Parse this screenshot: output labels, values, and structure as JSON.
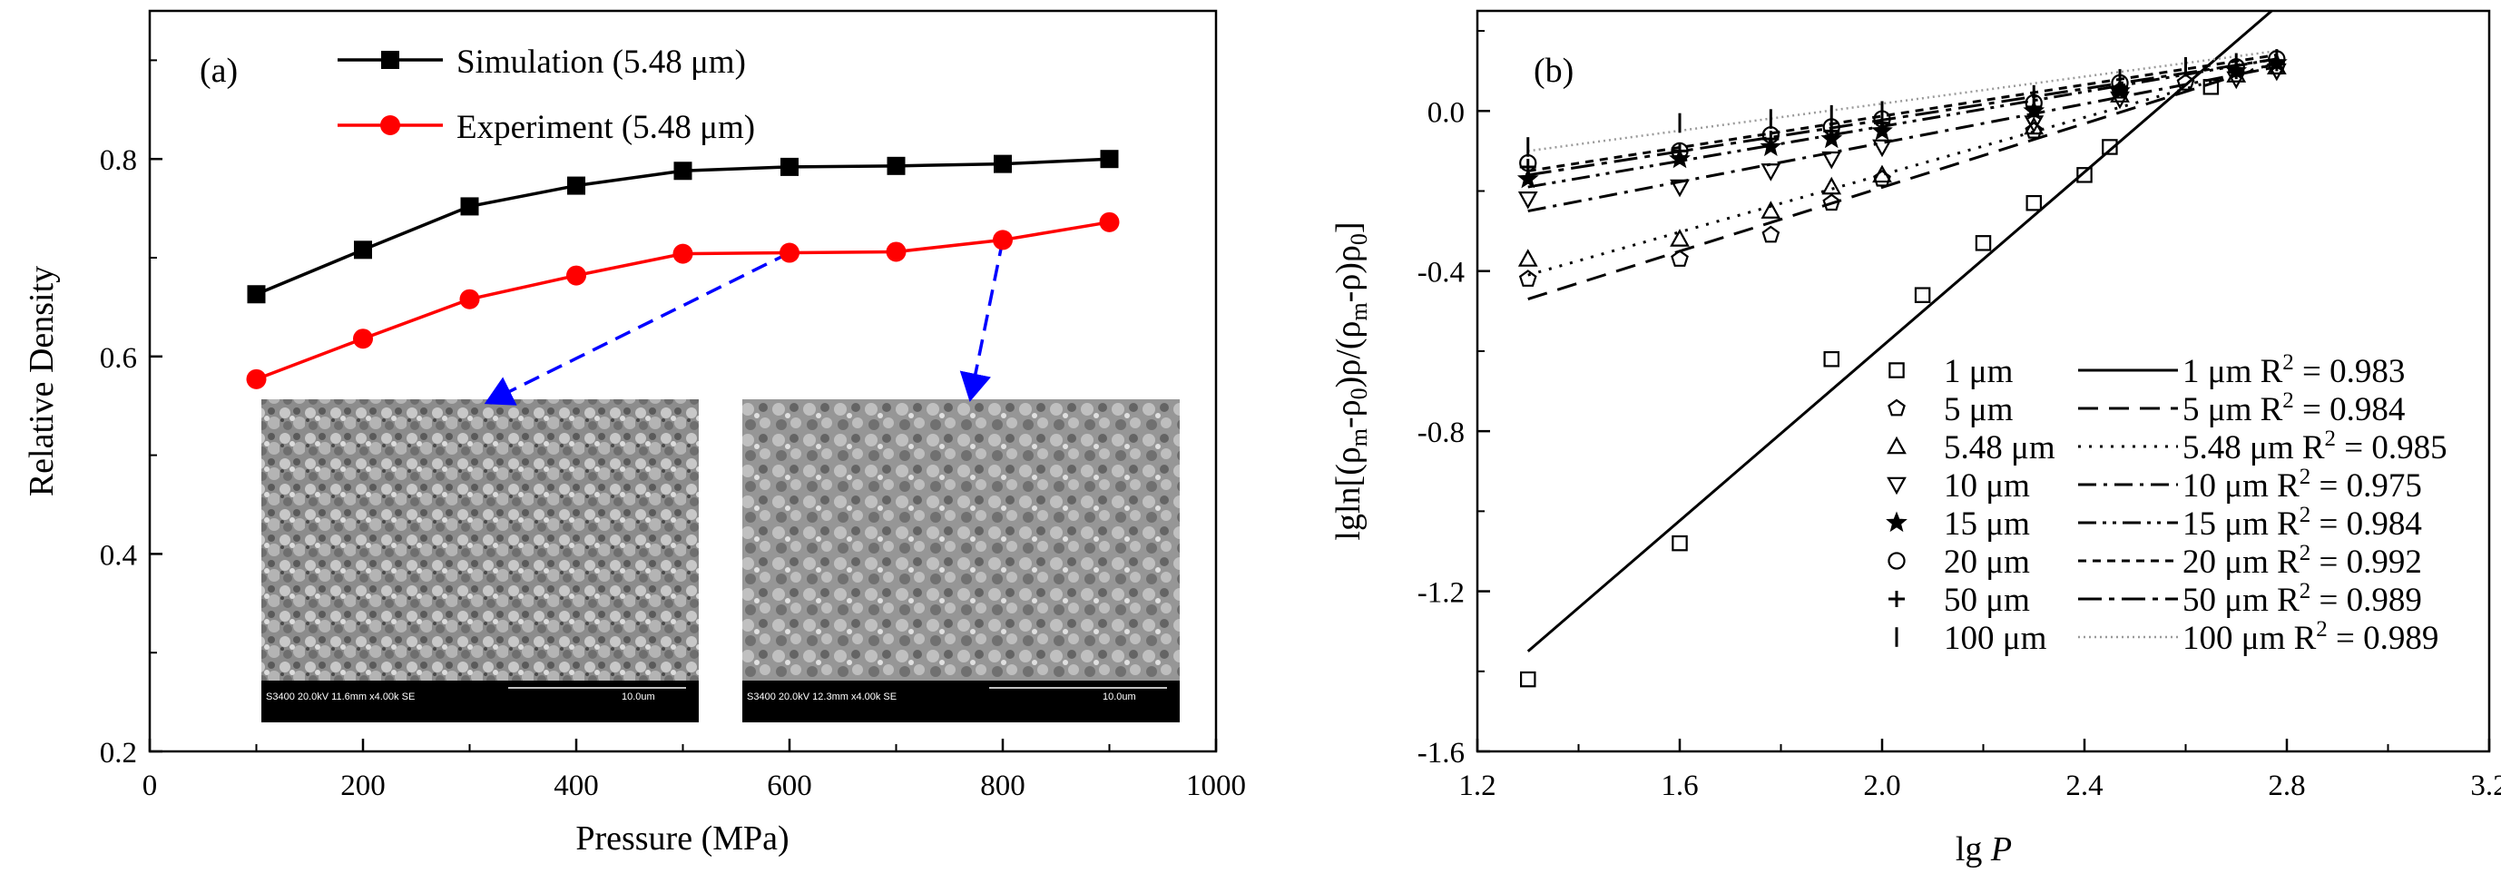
{
  "chart_data": [
    {
      "type": "line",
      "panel_label": "(a)",
      "xlabel": "Pressure (MPa)",
      "ylabel": "Relative Density",
      "xlim": [
        0,
        1000
      ],
      "ylim": [
        0.2,
        0.95
      ],
      "xticks": [
        0,
        200,
        400,
        600,
        800,
        1000
      ],
      "yticks": [
        0.2,
        0.4,
        0.6,
        0.8
      ],
      "ytick_labels": [
        "0.2",
        "0.4",
        "0.6",
        "0.8"
      ],
      "grid": false,
      "legend_position": "top-center",
      "series": [
        {
          "name": "Simulation (5.48 μm)",
          "color": "#000000",
          "marker": "square",
          "x": [
            100,
            200,
            300,
            400,
            500,
            600,
            700,
            800,
            900
          ],
          "y": [
            0.663,
            0.708,
            0.752,
            0.773,
            0.788,
            0.792,
            0.793,
            0.795,
            0.8
          ]
        },
        {
          "name": "Experiment (5.48 μm)",
          "color": "#ff0000",
          "marker": "circle",
          "x": [
            100,
            200,
            300,
            400,
            500,
            600,
            700,
            800,
            900
          ],
          "y": [
            0.577,
            0.618,
            0.658,
            0.682,
            0.704,
            0.705,
            0.706,
            0.718,
            0.736
          ]
        }
      ],
      "annotations": [
        {
          "type": "dashed-arrow",
          "color": "#0000ff",
          "from": [
            600,
            0.705
          ],
          "to_inset": "left"
        },
        {
          "type": "dashed-arrow",
          "color": "#0000ff",
          "from": [
            800,
            0.718
          ],
          "to_inset": "right"
        }
      ],
      "insets": [
        {
          "kind": "sem-micrograph",
          "caption": "S3400 20.0kV 11.6mm x4.00k SE",
          "scale_label": "10.0um"
        },
        {
          "kind": "sem-micrograph",
          "caption": "S3400 20.0kV 12.3mm x4.00k SE",
          "scale_label": "10.0um"
        }
      ]
    },
    {
      "type": "scatter",
      "panel_label": "(b)",
      "xlabel": "lg P",
      "ylabel": "lgln[(ρm-ρ0)ρ/(ρm-ρ)ρ0]",
      "xlim": [
        1.2,
        3.2
      ],
      "ylim": [
        -1.6,
        0.25
      ],
      "xticks": [
        1.2,
        1.6,
        2.0,
        2.4,
        2.8,
        3.2
      ],
      "xtick_labels": [
        "1.2",
        "1.6",
        "2.0",
        "2.4",
        "2.8",
        "3.2"
      ],
      "yticks": [
        -1.6,
        -1.2,
        -0.8,
        -0.4,
        0.0
      ],
      "ytick_labels": [
        "-1.6",
        "-1.2",
        "-0.8",
        "-0.4",
        "0.0"
      ],
      "grid": false,
      "legend_position": "bottom-right",
      "series": [
        {
          "name": "1 μm",
          "marker": "square",
          "x": [
            1.3,
            1.6,
            1.9,
            2.08,
            2.2,
            2.3,
            2.4,
            2.45,
            2.65
          ],
          "y": [
            -1.42,
            -1.08,
            -0.62,
            -0.46,
            -0.33,
            -0.23,
            -0.16,
            -0.09,
            0.06
          ]
        },
        {
          "name": "5 μm",
          "marker": "pentagon",
          "x": [
            1.3,
            1.6,
            1.78,
            1.9,
            2.0,
            2.3,
            2.47,
            2.6,
            2.78
          ],
          "y": [
            -0.42,
            -0.37,
            -0.31,
            -0.23,
            -0.17,
            -0.05,
            0.05,
            0.07,
            0.11
          ]
        },
        {
          "name": "5.48 μm",
          "marker": "triangle-up",
          "x": [
            1.3,
            1.6,
            1.78,
            1.9,
            2.0,
            2.3,
            2.47,
            2.7,
            2.78
          ],
          "y": [
            -0.37,
            -0.32,
            -0.25,
            -0.19,
            -0.16,
            -0.04,
            0.04,
            0.09,
            0.11
          ]
        },
        {
          "name": "10 μm",
          "marker": "triangle-down",
          "x": [
            1.3,
            1.6,
            1.78,
            1.9,
            2.0,
            2.3,
            2.47,
            2.7,
            2.78
          ],
          "y": [
            -0.22,
            -0.19,
            -0.15,
            -0.12,
            -0.09,
            -0.03,
            0.03,
            0.08,
            0.1
          ]
        },
        {
          "name": "15 μm",
          "marker": "star",
          "x": [
            1.3,
            1.6,
            1.78,
            1.9,
            2.0,
            2.3,
            2.47,
            2.7,
            2.78
          ],
          "y": [
            -0.17,
            -0.12,
            -0.09,
            -0.07,
            -0.05,
            0.0,
            0.05,
            0.1,
            0.12
          ]
        },
        {
          "name": "20 μm",
          "marker": "circle",
          "x": [
            1.3,
            1.6,
            1.78,
            1.9,
            2.0,
            2.3,
            2.47,
            2.7,
            2.78
          ],
          "y": [
            -0.13,
            -0.1,
            -0.06,
            -0.04,
            -0.02,
            0.02,
            0.07,
            0.11,
            0.13
          ]
        },
        {
          "name": "50 μm",
          "marker": "plus",
          "x": [
            1.3,
            1.6,
            1.78,
            1.9,
            2.0,
            2.3,
            2.47,
            2.7,
            2.78
          ],
          "y": [
            -0.14,
            -0.1,
            -0.07,
            -0.05,
            -0.03,
            0.01,
            0.06,
            0.1,
            0.12
          ]
        },
        {
          "name": "100 μm",
          "marker": "vline",
          "x": [
            1.3,
            1.6,
            1.78,
            1.9,
            2.0,
            2.3,
            2.47,
            2.6,
            2.7,
            2.78
          ],
          "y": [
            -0.09,
            -0.03,
            -0.02,
            -0.01,
            0.0,
            0.04,
            0.08,
            0.11,
            0.12,
            0.13
          ]
        }
      ],
      "fits": [
        {
          "name": "1 μm R² = 0.983",
          "label": "1 μm R",
          "r2": "0.983",
          "dash": "solid",
          "x": [
            1.3,
            2.77
          ],
          "y": [
            -1.35,
            0.25
          ]
        },
        {
          "name": "5 μm R² = 0.984",
          "label": "5 μm R",
          "r2": "0.984",
          "dash": "long-dash",
          "x": [
            1.3,
            2.78
          ],
          "y": [
            -0.47,
            0.12
          ]
        },
        {
          "name": "5.48 μm R² = 0.985",
          "label": "5.48 μm R",
          "r2": "0.985",
          "dash": "dot",
          "x": [
            1.3,
            2.78
          ],
          "y": [
            -0.41,
            0.12
          ]
        },
        {
          "name": "10 μm R² = 0.975",
          "label": "10 μm R",
          "r2": "0.975",
          "dash": "dash-dot",
          "x": [
            1.3,
            2.78
          ],
          "y": [
            -0.25,
            0.11
          ]
        },
        {
          "name": "15 μm R² = 0.984",
          "label": "15 μm R",
          "r2": "0.984",
          "dash": "dash-dot-dot",
          "x": [
            1.3,
            2.78
          ],
          "y": [
            -0.19,
            0.13
          ]
        },
        {
          "name": "20 μm R² = 0.992",
          "label": "20 μm R",
          "r2": "0.992",
          "dash": "short-dash",
          "x": [
            1.3,
            2.78
          ],
          "y": [
            -0.15,
            0.14
          ]
        },
        {
          "name": "50 μm R² = 0.989",
          "label": "50 μm R",
          "r2": "0.989",
          "dash": "dash-dot-long",
          "x": [
            1.3,
            2.78
          ],
          "y": [
            -0.16,
            0.13
          ]
        },
        {
          "name": "100 μm R² = 0.989",
          "label": "100 μm R",
          "r2": "0.989",
          "dash": "fine-dot-gray",
          "x": [
            1.3,
            2.78
          ],
          "y": [
            -0.1,
            0.15
          ]
        }
      ]
    }
  ]
}
